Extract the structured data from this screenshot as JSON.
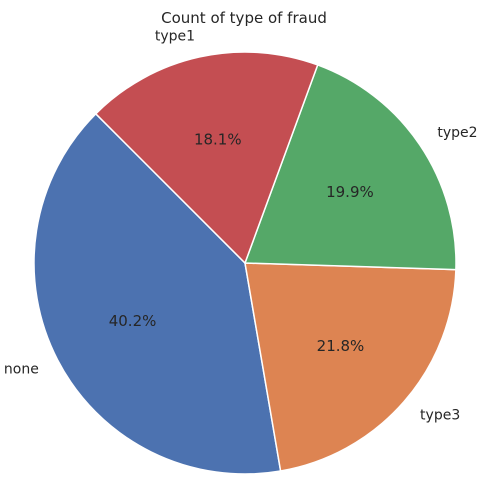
{
  "chart_data": {
    "type": "pie",
    "title": "Count of type of fraud",
    "categories": [
      "none",
      "type3",
      "type2",
      "type1"
    ],
    "values": [
      40.2,
      21.8,
      19.9,
      18.1
    ],
    "percent_labels": [
      "40.2%",
      "21.8%",
      "19.9%",
      "18.1%"
    ],
    "colors": [
      "#4c72b0",
      "#dd8452",
      "#55a868",
      "#c44e52"
    ],
    "start_angle_deg": 135,
    "direction": "counterclockwise",
    "edge_color": "#ffffff",
    "legend": "none"
  }
}
